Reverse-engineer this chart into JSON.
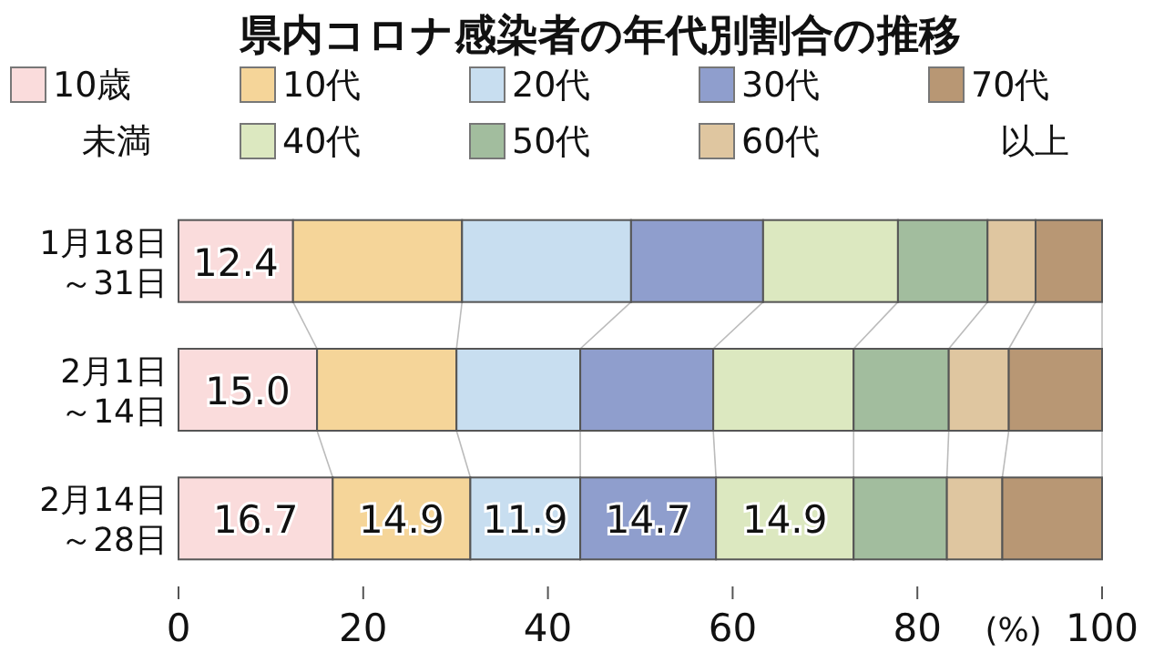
{
  "chart_data": {
    "type": "bar",
    "stacked": true,
    "orientation": "horizontal",
    "title": "県内コロナ感染者の年代別割合の推移",
    "xlabel": "(%)",
    "categories": [
      "1月18日～31日",
      "2月1日～14日",
      "2月14日～28日"
    ],
    "series": [
      {
        "name": "10歳未満",
        "color": "#fadcdc",
        "values": [
          12.4,
          15.0,
          16.7
        ],
        "value_labels": [
          "12.4",
          "15.0",
          "16.7"
        ]
      },
      {
        "name": "10代",
        "color": "#f5d599",
        "values": [
          18.3,
          15.1,
          14.9
        ],
        "value_labels": [
          null,
          null,
          "14.9"
        ]
      },
      {
        "name": "20代",
        "color": "#c8def0",
        "values": [
          18.3,
          13.4,
          11.9
        ],
        "value_labels": [
          null,
          null,
          "11.9"
        ]
      },
      {
        "name": "30代",
        "color": "#8f9ecd",
        "values": [
          14.3,
          14.4,
          14.7
        ],
        "value_labels": [
          null,
          null,
          "14.7"
        ]
      },
      {
        "name": "40代",
        "color": "#dce8c0",
        "values": [
          14.6,
          15.2,
          14.9
        ],
        "value_labels": [
          null,
          null,
          "14.9"
        ]
      },
      {
        "name": "50代",
        "color": "#a2bd9e",
        "values": [
          9.7,
          10.3,
          10.1
        ]
      },
      {
        "name": "60代",
        "color": "#dfc6a0",
        "values": [
          5.2,
          6.5,
          6.0
        ]
      },
      {
        "name": "70代以上",
        "color": "#b89774",
        "values": [
          7.2,
          10.1,
          10.8
        ]
      }
    ],
    "xlim": [
      0,
      100
    ],
    "xticks": [
      0,
      20,
      40,
      60,
      80,
      100
    ],
    "legend": "top",
    "grid": false
  }
}
